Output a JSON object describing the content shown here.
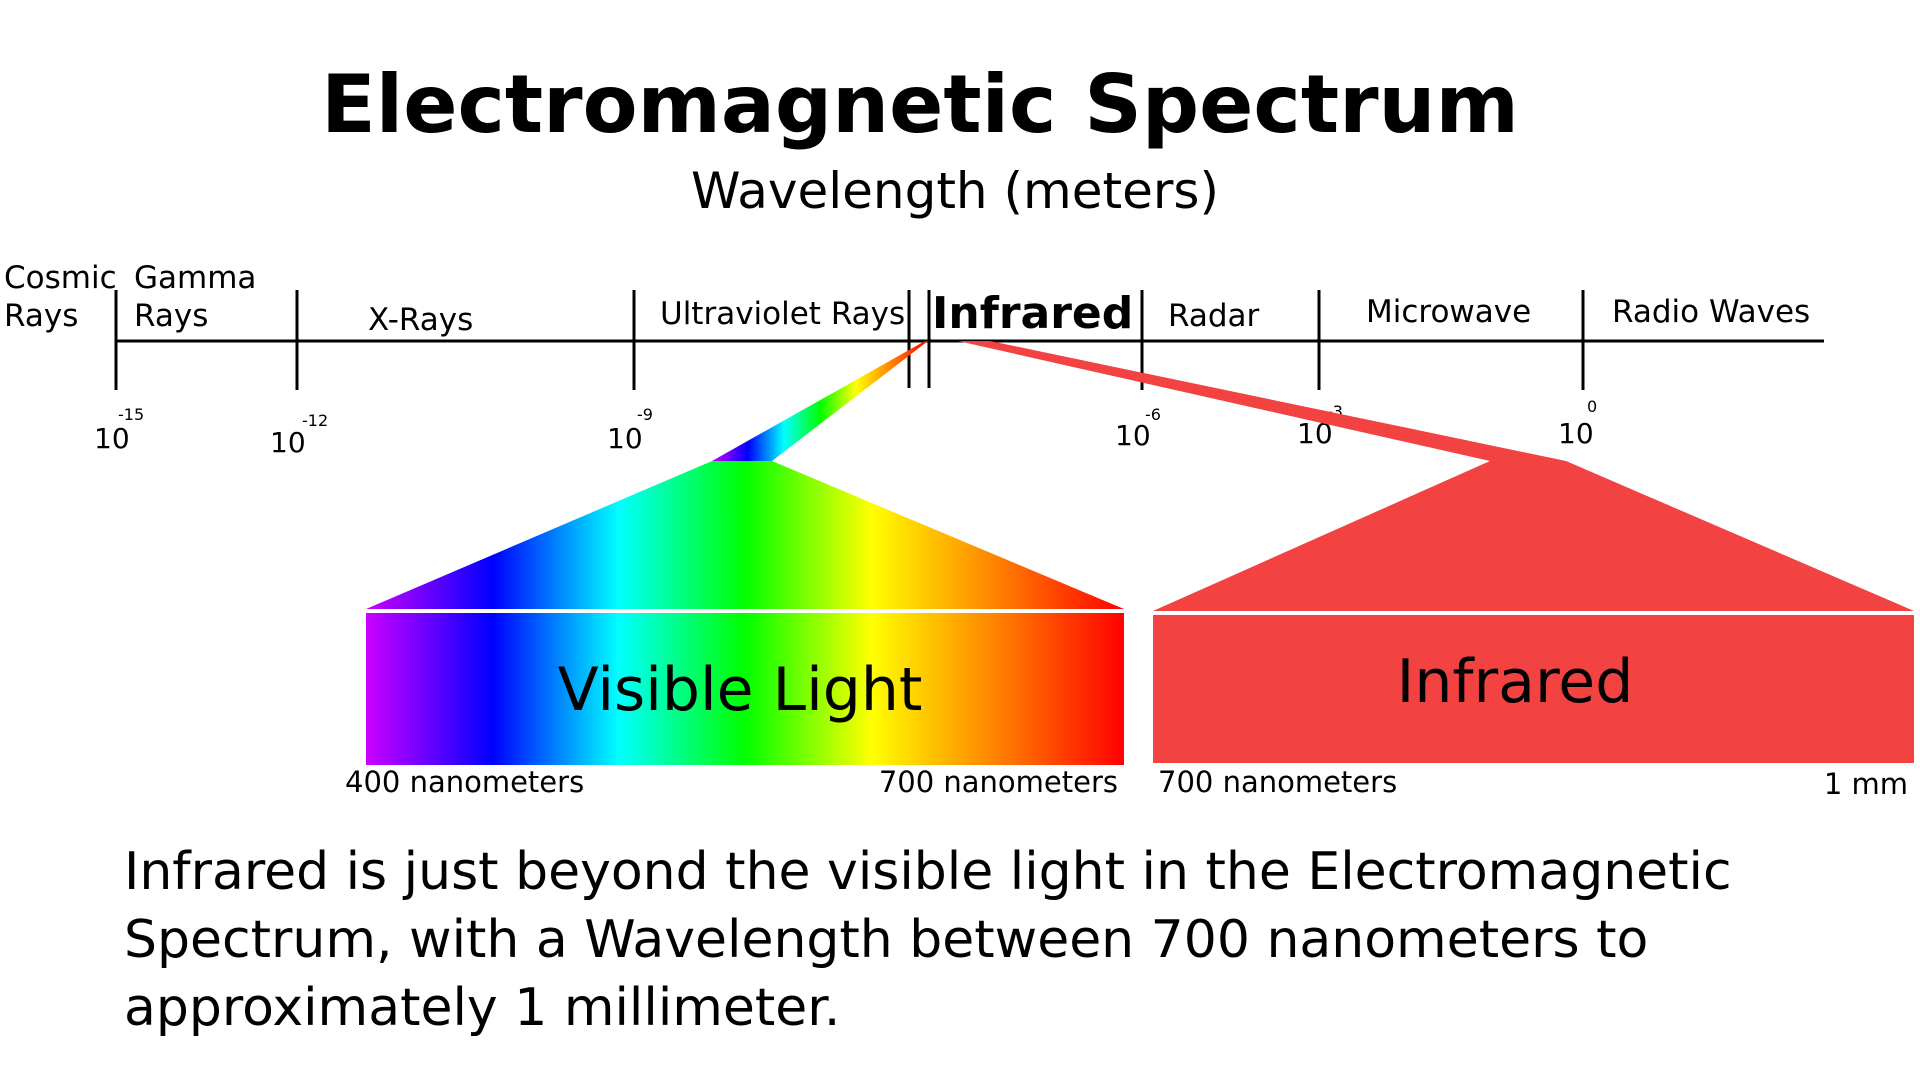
{
  "title": "Electromagnetic Spectrum",
  "subtitle": "Wavelength (meters)",
  "bands": [
    {
      "line1": "Cosmic",
      "line2": "Rays"
    },
    {
      "line1": "Gamma",
      "line2": "Rays"
    },
    {
      "label": "X-Rays"
    },
    {
      "label": "Ultraviolet Rays"
    },
    {
      "label": "Infrared"
    },
    {
      "label": "Radar"
    },
    {
      "label": "Microwave"
    },
    {
      "label": "Radio Waves"
    }
  ],
  "ticks": [
    {
      "base": "10",
      "exp": "-15"
    },
    {
      "base": "10",
      "exp": "-12"
    },
    {
      "base": "10",
      "exp": "-9"
    },
    {
      "base": "10",
      "exp": "-6"
    },
    {
      "base": "10",
      "exp": "-3"
    },
    {
      "base": "10",
      "exp": "0"
    }
  ],
  "visible": {
    "label": "Visible Light",
    "start_label": "400 nanometers",
    "end_label": "700 nanometers",
    "colors": [
      "#cc00ff",
      "#0000ff",
      "#00ffff",
      "#00ff00",
      "#ffff00",
      "#ff8000",
      "#ff0000"
    ]
  },
  "infrared": {
    "label": "Infrared",
    "start_label": "700 nanometers",
    "end_label": "1 mm",
    "color": "#f24242"
  },
  "caption": "Infrared is just beyond the visible light in the Electromagnetic Spectrum, with a Wavelength between 700 nanometers to approximately 1 millimeter."
}
